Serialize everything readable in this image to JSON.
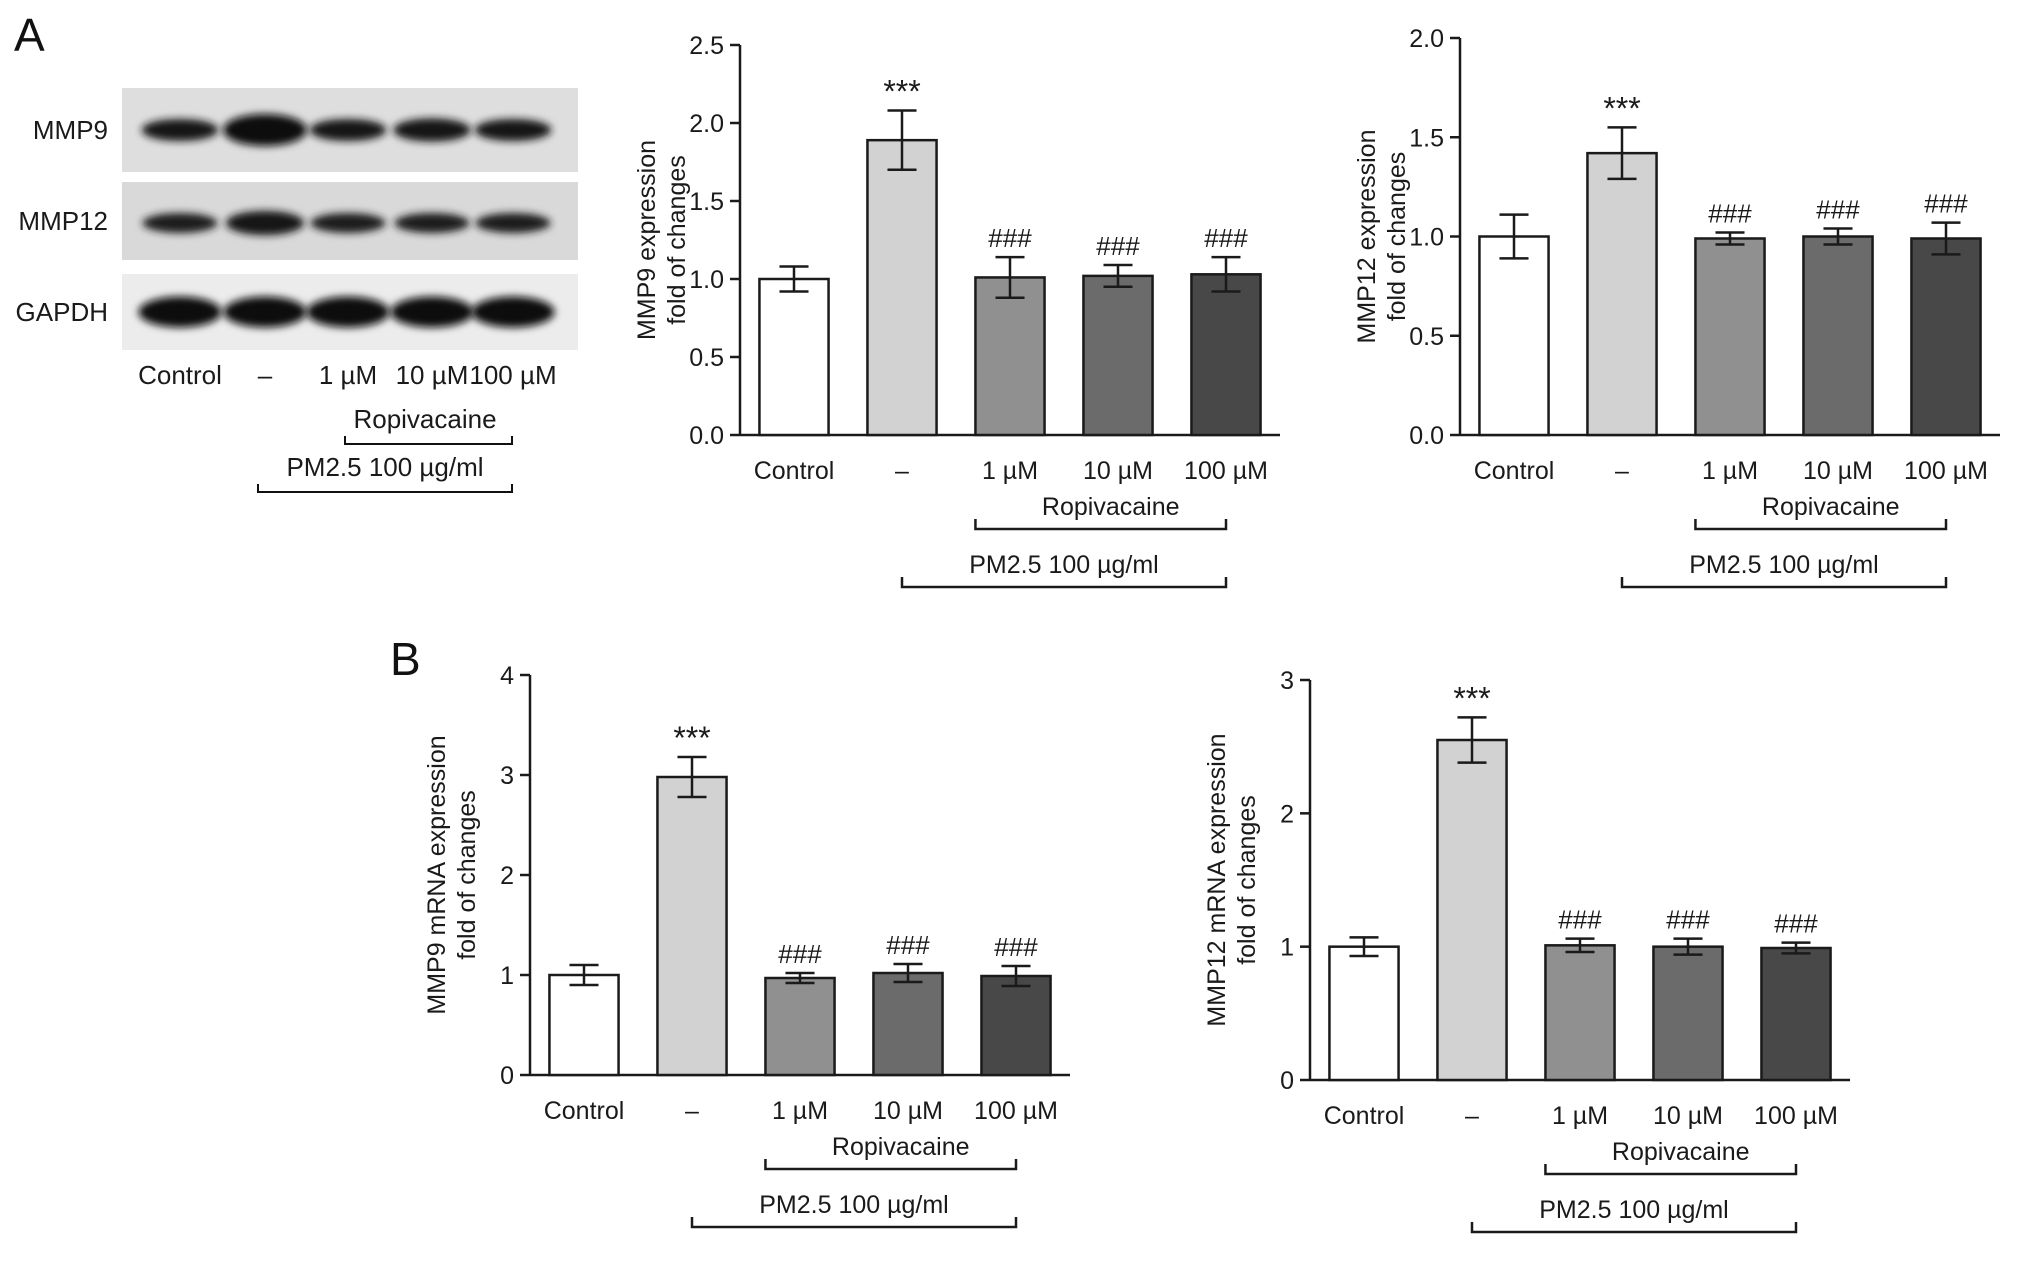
{
  "panels": {
    "a_label": "A",
    "b_label": "B"
  },
  "western_blot": {
    "rows": [
      "MMP9",
      "MMP12",
      "GAPDH"
    ],
    "lanes": [
      "Control",
      "–",
      "1 µM",
      "10 µM",
      "100 µM"
    ],
    "ropivacaine_label": "Ropivacaine",
    "pm_label": "PM2.5 100 µg/ml",
    "band_intensity": {
      "MMP9": [
        0.55,
        1.0,
        0.55,
        0.6,
        0.55
      ],
      "MMP12": [
        0.45,
        0.65,
        0.45,
        0.45,
        0.45
      ],
      "GAPDH": [
        0.95,
        0.95,
        0.95,
        0.95,
        0.95
      ]
    }
  },
  "chart_data": [
    {
      "id": "a-mmp9-protein",
      "type": "bar",
      "categories": [
        "Control",
        "–",
        "1 µM",
        "10 µM",
        "100 µM"
      ],
      "values": [
        1.0,
        1.89,
        1.01,
        1.02,
        1.03
      ],
      "errors": [
        0.08,
        0.19,
        0.13,
        0.07,
        0.11
      ],
      "annotations": [
        "",
        "***",
        "###",
        "###",
        "###"
      ],
      "bar_colors": [
        "#ffffff",
        "#d2d2d2",
        "#909090",
        "#6b6b6b",
        "#484848"
      ],
      "ylabel": [
        "MMP9 expression",
        "fold of changes"
      ],
      "ylim": [
        0,
        2.5
      ],
      "yticks": [
        0.0,
        0.5,
        1.0,
        1.5,
        2.0,
        2.5
      ],
      "ytick_labels": [
        "0.0",
        "0.5",
        "1.0",
        "1.5",
        "2.0",
        "2.5"
      ],
      "ropivacaine_label": "Ropivacaine",
      "pm_label": "PM2.5 100 µg/ml"
    },
    {
      "id": "a-mmp12-protein",
      "type": "bar",
      "categories": [
        "Control",
        "–",
        "1 µM",
        "10 µM",
        "100 µM"
      ],
      "values": [
        1.0,
        1.42,
        0.99,
        1.0,
        0.99
      ],
      "errors": [
        0.11,
        0.13,
        0.03,
        0.04,
        0.08
      ],
      "annotations": [
        "",
        "***",
        "###",
        "###",
        "###"
      ],
      "bar_colors": [
        "#ffffff",
        "#d2d2d2",
        "#909090",
        "#6b6b6b",
        "#484848"
      ],
      "ylabel": [
        "MMP12 expression",
        "fold of changes"
      ],
      "ylim": [
        0,
        2.0
      ],
      "yticks": [
        0.0,
        0.5,
        1.0,
        1.5,
        2.0
      ],
      "ytick_labels": [
        "0.0",
        "0.5",
        "1.0",
        "1.5",
        "2.0"
      ],
      "ropivacaine_label": "Ropivacaine",
      "pm_label": "PM2.5 100 µg/ml"
    },
    {
      "id": "b-mmp9-mrna",
      "type": "bar",
      "categories": [
        "Control",
        "–",
        "1 µM",
        "10 µM",
        "100 µM"
      ],
      "values": [
        1.0,
        2.98,
        0.97,
        1.02,
        0.99
      ],
      "errors": [
        0.1,
        0.2,
        0.05,
        0.09,
        0.1
      ],
      "annotations": [
        "",
        "***",
        "###",
        "###",
        "###"
      ],
      "bar_colors": [
        "#ffffff",
        "#d2d2d2",
        "#909090",
        "#6b6b6b",
        "#484848"
      ],
      "ylabel": [
        "MMP9 mRNA expression",
        "fold of changes"
      ],
      "ylim": [
        0,
        4
      ],
      "yticks": [
        0,
        1,
        2,
        3,
        4
      ],
      "ytick_labels": [
        "0",
        "1",
        "2",
        "3",
        "4"
      ],
      "ropivacaine_label": "Ropivacaine",
      "pm_label": "PM2.5 100 µg/ml"
    },
    {
      "id": "b-mmp12-mrna",
      "type": "bar",
      "categories": [
        "Control",
        "–",
        "1 µM",
        "10 µM",
        "100 µM"
      ],
      "values": [
        1.0,
        2.55,
        1.01,
        1.0,
        0.99
      ],
      "errors": [
        0.07,
        0.17,
        0.05,
        0.06,
        0.04
      ],
      "annotations": [
        "",
        "***",
        "###",
        "###",
        "###"
      ],
      "bar_colors": [
        "#ffffff",
        "#d2d2d2",
        "#909090",
        "#6b6b6b",
        "#484848"
      ],
      "ylabel": [
        "MMP12 mRNA expression",
        "fold of changes"
      ],
      "ylim": [
        0,
        3
      ],
      "yticks": [
        0,
        1,
        2,
        3
      ],
      "ytick_labels": [
        "0",
        "1",
        "2",
        "3"
      ],
      "ropivacaine_label": "Ropivacaine",
      "pm_label": "PM2.5 100 µg/ml"
    }
  ]
}
